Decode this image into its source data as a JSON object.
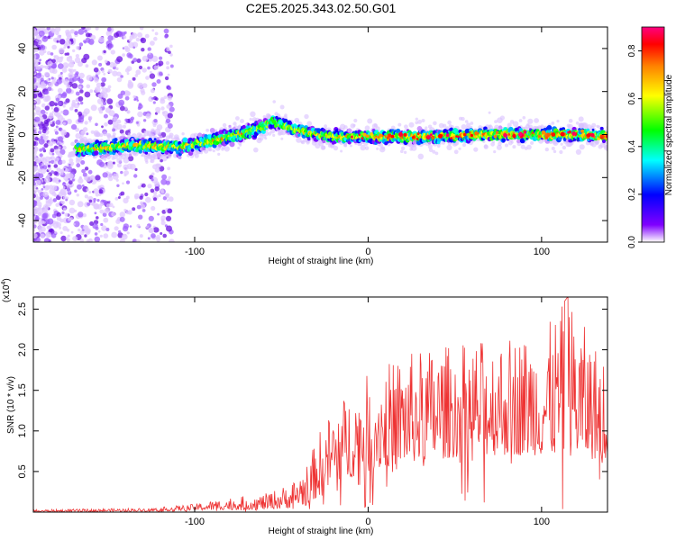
{
  "title": "C2E5.2025.343.02.50.G01",
  "chart_data": [
    {
      "type": "heatmap",
      "xlabel": "Height of straight line (km)",
      "ylabel": "Frequency (Hz)",
      "xlim": [
        -193,
        138
      ],
      "ylim": [
        -50,
        50
      ],
      "xticks": [
        -100,
        0,
        100
      ],
      "yticks": [
        -40,
        -20,
        0,
        20,
        40
      ],
      "grid": false,
      "ridge": {
        "x": [
          -165,
          -150,
          -130,
          -110,
          -90,
          -75,
          -62,
          -55,
          -45,
          -35,
          -28,
          -20,
          0,
          20,
          40,
          60,
          80,
          100,
          120,
          138
        ],
        "y": [
          -7,
          -6,
          -5,
          -6,
          -3,
          0,
          3,
          6,
          3,
          1,
          0,
          -1,
          -1,
          -1,
          -1,
          0,
          0,
          0,
          0,
          -1
        ]
      },
      "colorbar": {
        "label": "Normalized spectral amplitude",
        "range": [
          0.0,
          0.9
        ],
        "ticks": [
          "0.0",
          "0.2",
          "0.4",
          "0.6",
          "0.8"
        ],
        "colormap": [
          "#ffffff",
          "#8000ff",
          "#0000ff",
          "#00ffff",
          "#00ff00",
          "#ffff00",
          "#ff8000",
          "#ff0000",
          "#ff0080"
        ]
      }
    },
    {
      "type": "line",
      "xlabel": "Height of straight line (km)",
      "ylabel": "SNR (10 * v/v)",
      "multiplier": "(x10",
      "multiplier_exp": "4",
      "multiplier_close": ")",
      "xlim": [
        -193,
        138
      ],
      "ylim": [
        0,
        2.65
      ],
      "xticks": [
        -100,
        0,
        100
      ],
      "yticks": [
        "0.5",
        "1.0",
        "1.5",
        "2.0",
        "2.5"
      ],
      "color": "#ee3333",
      "grid": false,
      "envelope": {
        "x": [
          -193,
          -125,
          -100,
          -80,
          -60,
          -45,
          -35,
          -28,
          -20,
          0,
          20,
          40,
          60,
          80,
          100,
          115,
          130,
          138
        ],
        "floor": [
          0.0,
          0.01,
          0.02,
          0.03,
          0.03,
          0.05,
          0.1,
          0.2,
          0.35,
          0.5,
          0.6,
          0.65,
          0.7,
          0.7,
          0.7,
          0.7,
          0.65,
          0.65
        ],
        "peak": [
          0.03,
          0.05,
          0.1,
          0.18,
          0.22,
          0.35,
          0.6,
          1.0,
          1.3,
          1.7,
          1.95,
          2.05,
          2.1,
          2.2,
          2.2,
          2.65,
          2.1,
          1.9
        ]
      }
    }
  ]
}
